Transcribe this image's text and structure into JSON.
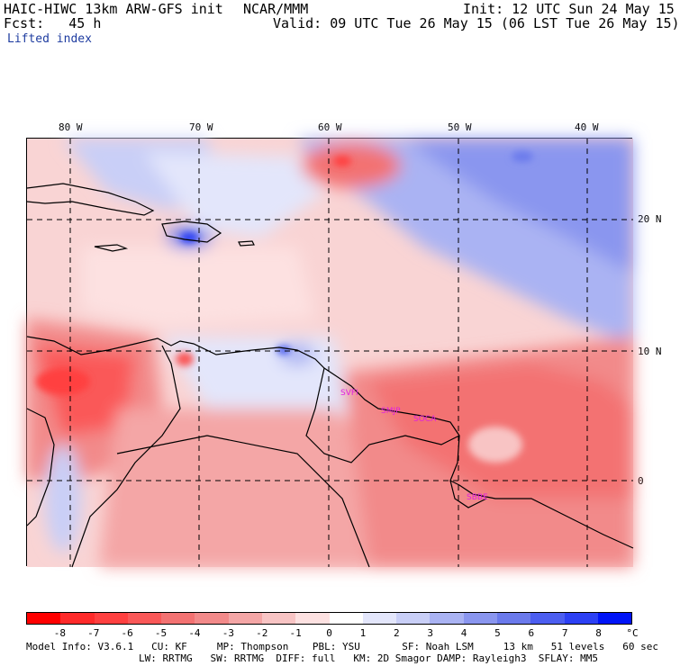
{
  "header": {
    "model": "HAIC-HIWC 13km ARW-GFS init",
    "center": "NCAR/MMM",
    "init": "Init: 12 UTC Sun 24 May 15",
    "fcst": "Fcst:   45 h",
    "valid": "Valid: 09 UTC Tue 26 May 15 (06 LST Tue 26 May 15)",
    "field": "Lifted index"
  },
  "map": {
    "lon_labels": [
      "80 W",
      "70 W",
      "60 W",
      "50 W",
      "40 W"
    ],
    "lat_labels": [
      "20 N",
      "10 N",
      "0"
    ],
    "stations": [
      "SVFI",
      "SMJP",
      "SOCA",
      "SBBE"
    ]
  },
  "colorbar": {
    "ticks": [
      "-8",
      "-7",
      "-6",
      "-5",
      "-4",
      "-3",
      "-2",
      "-1",
      "0",
      "1",
      "2",
      "3",
      "4",
      "5",
      "6",
      "7",
      "8"
    ],
    "unit": "°C",
    "colors": [
      "#ff0000",
      "#ff2a2a",
      "#ff4040",
      "#fa5858",
      "#f37272",
      "#f28a8a",
      "#f4a6a6",
      "#f8c4c4",
      "#fde1e1",
      "#ffffff",
      "#e3e6fb",
      "#c9cff7",
      "#aab3f3",
      "#8a96ef",
      "#6b7aec",
      "#4c5ef0",
      "#2c40f4",
      "#0014f8"
    ]
  },
  "model_info": {
    "line1": "Model Info: V3.6.1   CU: KF     MP: Thompson    PBL: YSU       SF: Noah LSM     13 km   51 levels   60 sec",
    "line2": "LW: RRTMG   SW: RRTMG  DIFF: full   KM: 2D Smagor DAMP: Rayleigh3  SFLAY: MM5"
  }
}
